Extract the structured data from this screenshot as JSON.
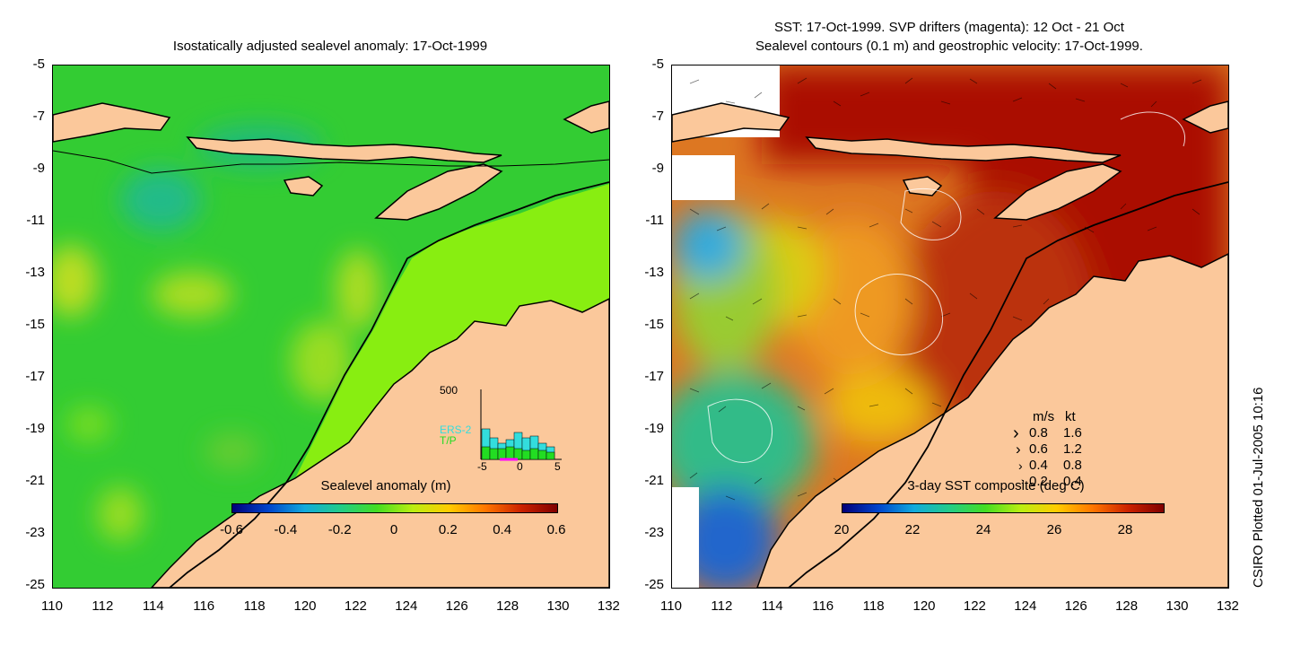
{
  "left_panel": {
    "title": "Isostatically adjusted sealevel anomaly: 17-Oct-1999",
    "colorbar_label": "Sealevel anomaly (m)",
    "colorbar_ticks": [
      "-0.6",
      "-0.4",
      "-0.2",
      "0",
      "0.2",
      "0.4",
      "0.6"
    ],
    "inset": {
      "ymax_label": "500",
      "series": [
        "ERS-2",
        "T/P"
      ],
      "xticks": [
        "-5",
        "0",
        "5"
      ],
      "colors": {
        "ERS-2": "#33dddd",
        "T/P": "#22dd22",
        "marker": "#ff00ff"
      }
    }
  },
  "right_panel": {
    "title_line1": "SST: 17-Oct-1999. SVP drifters (magenta): 12 Oct - 21 Oct",
    "title_line2": "Sealevel contours (0.1 m) and geostrophic velocity: 17-Oct-1999.",
    "colorbar_label": "3-day SST composite (deg C)",
    "colorbar_ticks": [
      "20",
      "22",
      "24",
      "26",
      "28"
    ],
    "legend": {
      "header_ms": "m/s",
      "header_kt": "kt",
      "rows": [
        {
          "ms": "0.8",
          "kt": "1.6"
        },
        {
          "ms": "0.6",
          "kt": "1.2"
        },
        {
          "ms": "0.4",
          "kt": "0.8"
        },
        {
          "ms": "0.2",
          "kt": "0.4"
        }
      ]
    }
  },
  "axes": {
    "x_ticks": [
      "110",
      "112",
      "114",
      "116",
      "118",
      "120",
      "122",
      "124",
      "126",
      "128",
      "130",
      "132"
    ],
    "y_ticks": [
      "-5",
      "-7",
      "-9",
      "-11",
      "-13",
      "-15",
      "-17",
      "-19",
      "-21",
      "-23",
      "-25"
    ]
  },
  "credit": "CSIRO Plotted 01-Jul-2005 10:16",
  "colors": {
    "land": "#fbc89b",
    "sla_background": "#33cc33",
    "sla_shelf": "#88ee11",
    "sst_warm": "#aa1100",
    "sst_mid": "#dd6622",
    "sst_cool": "#33aadd"
  }
}
